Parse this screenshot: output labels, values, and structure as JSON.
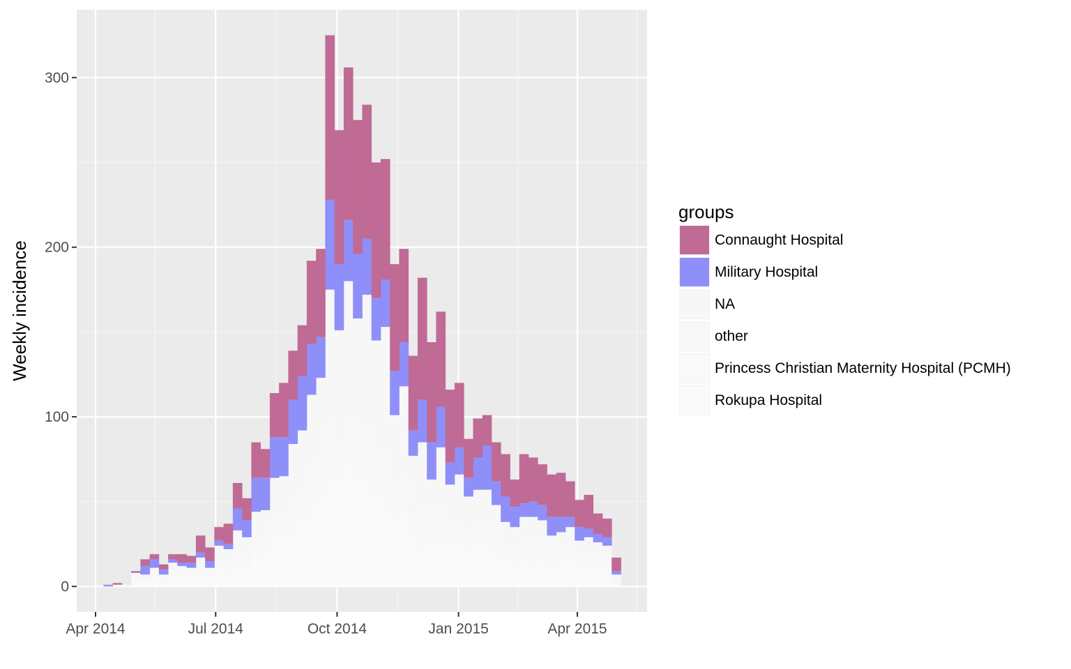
{
  "chart_data": {
    "type": "area",
    "subtype": "stacked weekly histogram (epicurve)",
    "title": "",
    "xlabel": "",
    "ylabel": "Weekly incidence",
    "x_tick_labels": [
      "Apr 2014",
      "Jul 2014",
      "Oct 2014",
      "Jan 2015",
      "Apr 2015"
    ],
    "y_ticks": [
      0,
      100,
      200,
      300
    ],
    "ylim": [
      -15,
      340
    ],
    "grid": true,
    "panel_background": "#ebebeb",
    "legend": {
      "title": "groups",
      "position": "right"
    },
    "weeks": [
      "2014-04-07",
      "2014-04-14",
      "2014-04-21",
      "2014-04-28",
      "2014-05-05",
      "2014-05-12",
      "2014-05-19",
      "2014-05-26",
      "2014-06-02",
      "2014-06-09",
      "2014-06-16",
      "2014-06-23",
      "2014-06-30",
      "2014-07-07",
      "2014-07-14",
      "2014-07-21",
      "2014-07-28",
      "2014-08-04",
      "2014-08-11",
      "2014-08-18",
      "2014-08-25",
      "2014-09-01",
      "2014-09-08",
      "2014-09-15",
      "2014-09-22",
      "2014-09-29",
      "2014-10-06",
      "2014-10-13",
      "2014-10-20",
      "2014-10-27",
      "2014-11-03",
      "2014-11-10",
      "2014-11-17",
      "2014-11-24",
      "2014-12-01",
      "2014-12-08",
      "2014-12-15",
      "2014-12-22",
      "2014-12-29",
      "2015-01-05",
      "2015-01-12",
      "2015-01-19",
      "2015-01-26",
      "2015-02-02",
      "2015-02-09",
      "2015-02-16",
      "2015-02-23",
      "2015-03-02",
      "2015-03-09",
      "2015-03-16",
      "2015-03-23",
      "2015-03-30",
      "2015-04-06",
      "2015-04-13",
      "2015-04-20",
      "2015-04-27"
    ],
    "series": [
      {
        "name": "Rokupa Hospital",
        "color": "#fafafa",
        "values": [
          0,
          0,
          0,
          3,
          2,
          4,
          2,
          5,
          5,
          4,
          5,
          3,
          7,
          5,
          12,
          10,
          17,
          14,
          23,
          23,
          29,
          31,
          37,
          43,
          52,
          46,
          54,
          44,
          52,
          42,
          44,
          27,
          34,
          21,
          21,
          18,
          22,
          18,
          16,
          16,
          18,
          17,
          14,
          10,
          9,
          12,
          11,
          12,
          9,
          10,
          12,
          8,
          9,
          8,
          7,
          2
        ]
      },
      {
        "name": "Princess Christian Maternity Hospital (PCMH)",
        "color": "#f9f9f9",
        "values": [
          0,
          1,
          1,
          2,
          2,
          2,
          1,
          2,
          1,
          2,
          3,
          2,
          4,
          4,
          4,
          3,
          4,
          6,
          7,
          8,
          10,
          12,
          14,
          14,
          21,
          18,
          22,
          19,
          20,
          16,
          17,
          13,
          14,
          10,
          12,
          9,
          12,
          8,
          10,
          8,
          10,
          10,
          8,
          7,
          6,
          8,
          8,
          7,
          5,
          6,
          6,
          5,
          6,
          5,
          5,
          1
        ]
      },
      {
        "name": "other",
        "color": "#f8f8f8",
        "values": [
          0,
          0,
          0,
          1,
          1,
          2,
          2,
          3,
          2,
          2,
          3,
          2,
          4,
          4,
          6,
          5,
          7,
          8,
          11,
          11,
          13,
          14,
          17,
          18,
          24,
          21,
          25,
          20,
          22,
          19,
          19,
          15,
          16,
          13,
          14,
          10,
          14,
          10,
          12,
          9,
          11,
          11,
          9,
          8,
          7,
          8,
          8,
          8,
          6,
          6,
          6,
          5,
          5,
          5,
          5,
          2
        ]
      },
      {
        "name": "NA",
        "color": "#f7f7f7",
        "values": [
          0,
          0,
          0,
          2,
          2,
          3,
          2,
          4,
          4,
          3,
          6,
          4,
          9,
          9,
          11,
          11,
          16,
          17,
          23,
          23,
          32,
          35,
          45,
          48,
          78,
          66,
          79,
          75,
          78,
          68,
          73,
          46,
          54,
          33,
          38,
          26,
          34,
          24,
          28,
          20,
          18,
          19,
          17,
          13,
          13,
          13,
          14,
          12,
          10,
          10,
          11,
          9,
          9,
          8,
          7,
          2
        ]
      },
      {
        "name": "Military Hospital",
        "color": "#8f8ffa",
        "values": [
          1,
          0,
          0,
          0,
          5,
          5,
          3,
          2,
          2,
          3,
          3,
          4,
          3,
          3,
          13,
          10,
          20,
          19,
          24,
          23,
          26,
          32,
          30,
          24,
          53,
          39,
          36,
          38,
          33,
          25,
          28,
          26,
          26,
          15,
          25,
          22,
          24,
          13,
          16,
          11,
          19,
          26,
          14,
          15,
          12,
          8,
          9,
          9,
          11,
          9,
          6,
          8,
          5,
          5,
          5,
          2
        ]
      },
      {
        "name": "Connaught Hospital",
        "color": "#bf6b95",
        "values": [
          0,
          1,
          0,
          1,
          4,
          3,
          3,
          3,
          5,
          4,
          10,
          8,
          8,
          12,
          15,
          13,
          21,
          17,
          26,
          32,
          29,
          30,
          49,
          52,
          97,
          79,
          90,
          79,
          79,
          80,
          71,
          63,
          55,
          44,
          72,
          59,
          56,
          43,
          38,
          23,
          23,
          18,
          23,
          25,
          16,
          29,
          26,
          24,
          25,
          26,
          21,
          16,
          20,
          12,
          11,
          8
        ]
      }
    ]
  }
}
